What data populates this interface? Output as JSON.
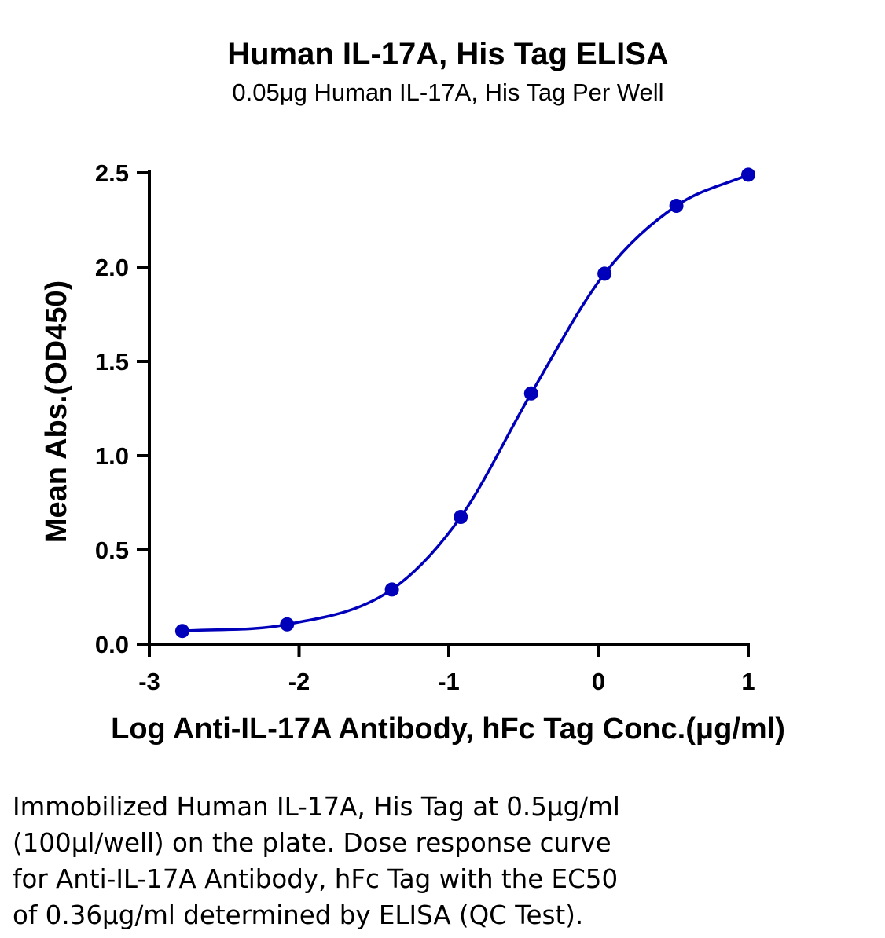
{
  "chart_data": {
    "type": "scatter",
    "title": "Human IL-17A, His Tag ELISA",
    "subtitle": "0.05μg Human IL-17A, His Tag Per Well",
    "xlabel": "Log Anti-IL-17A Antibody, hFc Tag Conc.(μg/ml)",
    "ylabel": "Mean Abs.(OD450)",
    "xlim": [
      -3,
      1
    ],
    "ylim": [
      0,
      2.5
    ],
    "x_ticks": [
      "-3",
      "-2",
      "-1",
      "0",
      "1"
    ],
    "y_ticks": [
      "0.0",
      "0.5",
      "1.0",
      "1.5",
      "2.0",
      "2.5"
    ],
    "grid": false,
    "fit": "4-parameter logistic curve",
    "color": "#0000bb",
    "series": [
      {
        "x": [
          -2.78,
          -2.08,
          -1.38,
          -0.92,
          -0.45,
          0.04,
          0.52,
          1.0
        ],
        "y": [
          0.07,
          0.105,
          0.29,
          0.675,
          1.33,
          1.965,
          2.325,
          2.49
        ]
      }
    ]
  },
  "caption": {
    "lines": [
      "Immobilized Human IL-17A, His Tag at 0.5μg/ml",
      "(100μl/well) on the plate. Dose response curve",
      "for Anti-IL-17A Antibody, hFc Tag with the EC50",
      "of 0.36μg/ml determined by ELISA (QC Test)."
    ]
  }
}
